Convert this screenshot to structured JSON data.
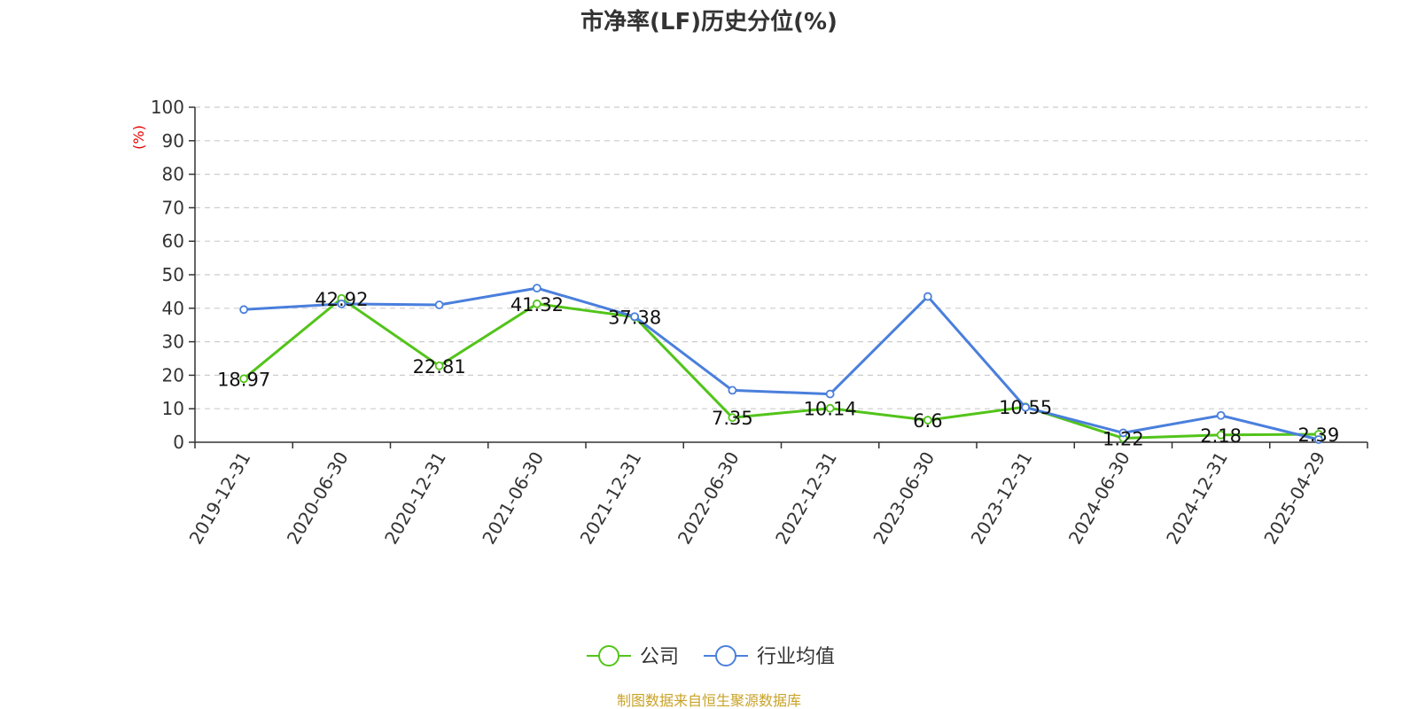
{
  "chart_data": {
    "type": "line",
    "title": "市净率(LF)历史分位(%)",
    "ylabel": "(%)",
    "ylim": [
      0,
      100
    ],
    "yticks": [
      0,
      10,
      20,
      30,
      40,
      50,
      60,
      70,
      80,
      90,
      100
    ],
    "grid": true,
    "legend_position": "bottom",
    "categories": [
      "2019-12-31",
      "2020-06-30",
      "2020-12-31",
      "2021-06-30",
      "2021-12-31",
      "2022-06-30",
      "2022-12-31",
      "2023-06-30",
      "2023-12-31",
      "2024-06-30",
      "2024-12-31",
      "2025-04-29"
    ],
    "series": [
      {
        "name": "公司",
        "color": "#52c41a",
        "values": [
          18.97,
          42.92,
          22.81,
          41.32,
          37.38,
          7.35,
          10.14,
          6.6,
          10.55,
          1.22,
          2.18,
          2.39
        ],
        "labels": [
          "18.97",
          "42.92",
          "22.81",
          "41.32",
          "37.38",
          "7.35",
          "10.14",
          "6.6",
          "10.55",
          "1.22",
          "2.18",
          "2.39"
        ]
      },
      {
        "name": "行业均值",
        "color": "#4a7fdc",
        "values": [
          39.6,
          41.3,
          41.0,
          46.0,
          37.5,
          15.5,
          14.4,
          43.5,
          10.4,
          2.8,
          8.0,
          0.8
        ]
      }
    ],
    "source": "制图数据来自恒生聚源数据库"
  }
}
